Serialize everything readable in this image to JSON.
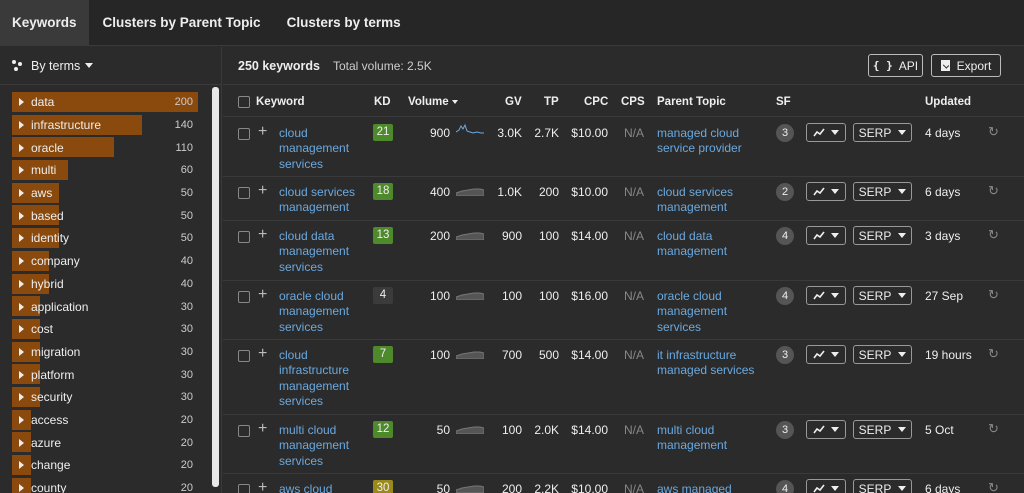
{
  "tabs": [
    "Keywords",
    "Clusters by Parent Topic",
    "Clusters by terms"
  ],
  "sidebar": {
    "mode_label": "By terms",
    "max_count": 200,
    "terms": [
      {
        "label": "data",
        "count": "200",
        "value": 200
      },
      {
        "label": "infrastructure",
        "count": "140",
        "value": 140
      },
      {
        "label": "oracle",
        "count": "110",
        "value": 110
      },
      {
        "label": "multi",
        "count": "60",
        "value": 60
      },
      {
        "label": "aws",
        "count": "50",
        "value": 50
      },
      {
        "label": "based",
        "count": "50",
        "value": 50
      },
      {
        "label": "identity",
        "count": "50",
        "value": 50
      },
      {
        "label": "company",
        "count": "40",
        "value": 40
      },
      {
        "label": "hybrid",
        "count": "40",
        "value": 40
      },
      {
        "label": "application",
        "count": "30",
        "value": 30
      },
      {
        "label": "cost",
        "count": "30",
        "value": 30
      },
      {
        "label": "migration",
        "count": "30",
        "value": 30
      },
      {
        "label": "platform",
        "count": "30",
        "value": 30
      },
      {
        "label": "security",
        "count": "30",
        "value": 30
      },
      {
        "label": "access",
        "count": "20",
        "value": 20
      },
      {
        "label": "azure",
        "count": "20",
        "value": 20
      },
      {
        "label": "change",
        "count": "20",
        "value": 20
      },
      {
        "label": "county",
        "count": "20",
        "value": 20
      }
    ]
  },
  "summary": {
    "count": "250 keywords",
    "total": "Total volume: 2.5K"
  },
  "buttons": {
    "api": "API",
    "api_icon": "{ }",
    "export": "Export"
  },
  "columns": {
    "keyword": "Keyword",
    "kd": "KD",
    "volume": "Volume",
    "gv": "GV",
    "tp": "TP",
    "cpc": "CPC",
    "cps": "CPS",
    "parent_topic": "Parent Topic",
    "sf": "SF",
    "updated": "Updated"
  },
  "colors": {
    "kd_green": "#4e8a2c",
    "kd_dark": "#3b3b3b",
    "kd_amber": "#9a8a1a",
    "term_bar": "#8a4a0e"
  },
  "serp_label": "SERP",
  "rows": [
    {
      "keyword": "cloud management services",
      "kd": "21",
      "kd_color": "green",
      "volume": "900",
      "gv": "3.0K",
      "tp": "2.7K",
      "cpc": "$10.00",
      "cps": "N/A",
      "parent_topic": "managed cloud service provider",
      "sf": "3",
      "updated": "4 days"
    },
    {
      "keyword": "cloud services management",
      "kd": "18",
      "kd_color": "green",
      "volume": "400",
      "gv": "1.0K",
      "tp": "200",
      "cpc": "$10.00",
      "cps": "N/A",
      "parent_topic": "cloud services management",
      "sf": "2",
      "updated": "6 days"
    },
    {
      "keyword": "cloud data management services",
      "kd": "13",
      "kd_color": "green",
      "volume": "200",
      "gv": "900",
      "tp": "100",
      "cpc": "$14.00",
      "cps": "N/A",
      "parent_topic": "cloud data management",
      "sf": "4",
      "updated": "3 days"
    },
    {
      "keyword": "oracle cloud management services",
      "kd": "4",
      "kd_color": "dark",
      "volume": "100",
      "gv": "100",
      "tp": "100",
      "cpc": "$16.00",
      "cps": "N/A",
      "parent_topic": "oracle cloud management services",
      "sf": "4",
      "updated": "27 Sep"
    },
    {
      "keyword": "cloud infrastructure management services",
      "kd": "7",
      "kd_color": "green",
      "volume": "100",
      "gv": "700",
      "tp": "500",
      "cpc": "$14.00",
      "cps": "N/A",
      "parent_topic": "it infrastructure managed services",
      "sf": "3",
      "updated": "19 hours"
    },
    {
      "keyword": "multi cloud management services",
      "kd": "12",
      "kd_color": "green",
      "volume": "50",
      "gv": "100",
      "tp": "2.0K",
      "cpc": "$14.00",
      "cps": "N/A",
      "parent_topic": "multi cloud management",
      "sf": "3",
      "updated": "5 Oct"
    },
    {
      "keyword": "aws cloud",
      "kd": "30",
      "kd_color": "amber",
      "volume": "50",
      "gv": "200",
      "tp": "2.2K",
      "cpc": "$10.00",
      "cps": "N/A",
      "parent_topic": "aws managed",
      "sf": "4",
      "updated": "6 days"
    }
  ]
}
